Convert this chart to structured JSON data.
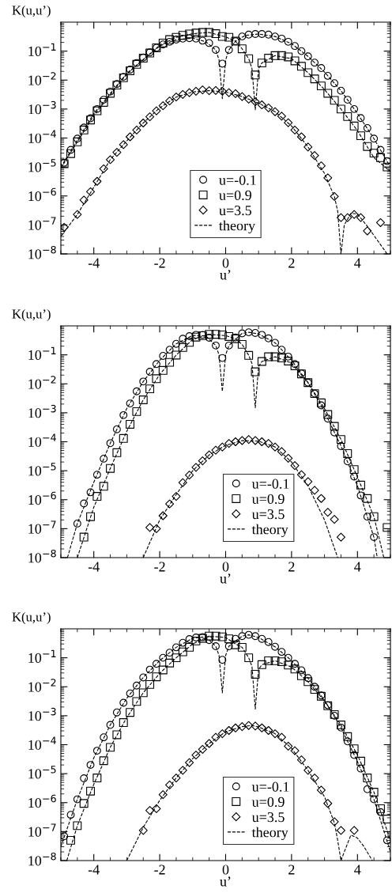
{
  "chart_data": [
    {
      "type": "scatter",
      "xlabel": "u’",
      "ylabel": "K(u,u’)",
      "log": "y",
      "legend": "bottom",
      "grid": false,
      "xlim": [
        -5,
        5
      ],
      "xticks": [
        -4,
        -2,
        0,
        2,
        4
      ],
      "ylim": [
        1e-08,
        1
      ],
      "yticks": [
        {
          "value": 1e-08,
          "label": "10$^{−8}$"
        },
        {
          "value": 1e-07,
          "label": "10$^{−7}$"
        },
        {
          "value": 1e-06,
          "label": "10$^{−6}$"
        },
        {
          "value": 1e-05,
          "label": "10$^{−5}$"
        },
        {
          "value": 0.0001,
          "label": "10$^{−4}$"
        },
        {
          "value": 0.001,
          "label": "10$^{−3}$"
        },
        {
          "value": 0.01,
          "label": "10$^{−2}$"
        },
        {
          "value": 0.1,
          "label": "10$^{−1}$"
        }
      ],
      "series": [
        {
          "type": "line",
          "name": "theory",
          "color": "#000000",
          "line_style": "dashed",
          "x": [
            -5,
            -4,
            -3,
            -2,
            -1.5,
            -1,
            -0.6,
            -0.3,
            -0.2,
            -0.1,
            0,
            0.1,
            0.3,
            0.6,
            1,
            1.5,
            2,
            2.5,
            3,
            3.5,
            4,
            4.5,
            5
          ],
          "values": [
            1e-05,
            0.0007,
            0.017,
            0.15,
            0.25,
            0.28,
            0.21,
            0.11,
            0.05,
            0.0023,
            0.05,
            0.11,
            0.22,
            0.35,
            0.39,
            0.32,
            0.18,
            0.066,
            0.019,
            0.0043,
            0.0007,
            9.5e-05,
            1e-05
          ]
        },
        {
          "type": "line",
          "color": "#000000",
          "line_style": "dashed",
          "x": [
            -5,
            -4,
            -3,
            -2,
            -1.5,
            -1,
            -0.5,
            0,
            0.3,
            0.5,
            0.7,
            0.8,
            0.9,
            1.0,
            1.1,
            1.5,
            2,
            2.5,
            3,
            3.5,
            4,
            4.5,
            5
          ],
          "values": [
            9e-06,
            0.0006,
            0.016,
            0.16,
            0.3,
            0.4,
            0.44,
            0.31,
            0.22,
            0.12,
            0.055,
            0.025,
            0.00095,
            0.025,
            0.039,
            0.07,
            0.055,
            0.018,
            0.0047,
            0.001,
            0.00018,
            2.1e-05,
            7e-06
          ]
        },
        {
          "type": "line",
          "color": "#000000",
          "line_style": "dashed",
          "x": [
            -5,
            -4.5,
            -4,
            -3.5,
            -3,
            -2.5,
            -2,
            -1.5,
            -1,
            -0.5,
            0,
            0.5,
            1,
            1.5,
            2,
            2.5,
            3,
            3.3,
            3.4,
            3.5,
            3.6,
            3.8,
            4.0,
            4.3,
            4.6,
            4.9
          ],
          "values": [
            4e-08,
            2.3e-07,
            2e-06,
            1.8e-05,
            8e-05,
            0.00033,
            0.0011,
            0.0026,
            0.0039,
            0.0043,
            0.0039,
            0.0027,
            0.0016,
            0.00081,
            0.00026,
            4.9e-05,
            6e-06,
            9.6e-07,
            3e-07,
            1e-08,
            1e-07,
            2.5e-07,
            2.4e-07,
            9e-08,
            3e-08,
            1e-08
          ]
        },
        {
          "type": "scatter",
          "name": "u=-0.1",
          "color": "#000000",
          "marker": "circle",
          "x": [
            -4.9,
            -4.7,
            -4.5,
            -4.3,
            -4.1,
            -3.9,
            -3.7,
            -3.5,
            -3.3,
            -3.1,
            -2.9,
            -2.7,
            -2.5,
            -2.3,
            -2.1,
            -1.9,
            -1.7,
            -1.5,
            -1.3,
            -1.1,
            -0.9,
            -0.7,
            -0.5,
            -0.3,
            -0.1,
            0.1,
            0.3,
            0.5,
            0.7,
            0.9,
            1.1,
            1.3,
            1.5,
            1.7,
            1.9,
            2.1,
            2.3,
            2.5,
            2.7,
            2.9,
            3.1,
            3.3,
            3.5,
            3.7,
            3.9,
            4.1,
            4.3,
            4.5,
            4.7,
            4.9
          ],
          "values": [
            1.4e-05,
            3.9e-05,
            9.5e-05,
            0.00023,
            0.00048,
            0.001,
            0.0021,
            0.004,
            0.0073,
            0.013,
            0.023,
            0.039,
            0.06,
            0.09,
            0.13,
            0.17,
            0.21,
            0.25,
            0.27,
            0.28,
            0.27,
            0.23,
            0.19,
            0.11,
            0.037,
            0.11,
            0.22,
            0.32,
            0.37,
            0.39,
            0.39,
            0.37,
            0.32,
            0.27,
            0.21,
            0.15,
            0.1,
            0.066,
            0.04,
            0.026,
            0.014,
            0.0078,
            0.0043,
            0.0021,
            0.001,
            0.00049,
            0.00022,
            9.5e-05,
            3.9e-05,
            1.6e-05
          ]
        },
        {
          "type": "scatter",
          "name": "u=0.9",
          "color": "#000000",
          "marker": "square",
          "x": [
            -4.9,
            -4.7,
            -4.5,
            -4.3,
            -4.1,
            -3.9,
            -3.7,
            -3.5,
            -3.3,
            -3.1,
            -2.9,
            -2.7,
            -2.5,
            -2.3,
            -2.1,
            -1.9,
            -1.7,
            -1.5,
            -1.3,
            -1.1,
            -0.9,
            -0.7,
            -0.5,
            -0.3,
            -0.1,
            0.1,
            0.3,
            0.5,
            0.7,
            0.9,
            1.1,
            1.3,
            1.5,
            1.7,
            1.9,
            2.1,
            2.3,
            2.5,
            2.7,
            2.9,
            3.1,
            3.3,
            3.5,
            3.7,
            3.9,
            4.1,
            4.3,
            4.5,
            4.7,
            4.9
          ],
          "values": [
            1.3e-05,
            2.9e-05,
            7.4e-05,
            0.00019,
            0.00042,
            0.00087,
            0.0017,
            0.0035,
            0.0067,
            0.012,
            0.021,
            0.035,
            0.057,
            0.086,
            0.13,
            0.19,
            0.25,
            0.3,
            0.35,
            0.39,
            0.42,
            0.44,
            0.44,
            0.4,
            0.32,
            0.3,
            0.22,
            0.12,
            0.055,
            0.015,
            0.039,
            0.057,
            0.07,
            0.07,
            0.063,
            0.046,
            0.03,
            0.018,
            0.011,
            0.0063,
            0.0035,
            0.002,
            0.001,
            0.00055,
            0.00026,
            0.00012,
            5.1e-05,
            3e-05,
            2.1e-05,
            1e-05
          ]
        },
        {
          "type": "scatter",
          "name": "u=3.5",
          "color": "#000000",
          "marker": "diamond",
          "x": [
            -4.9,
            -4.5,
            -4.3,
            -4.1,
            -3.9,
            -3.7,
            -3.5,
            -3.3,
            -3.1,
            -2.9,
            -2.7,
            -2.5,
            -2.3,
            -2.1,
            -1.9,
            -1.7,
            -1.5,
            -1.3,
            -1.1,
            -0.9,
            -0.7,
            -0.5,
            -0.3,
            -0.1,
            0.1,
            0.3,
            0.5,
            0.7,
            0.9,
            1.1,
            1.3,
            1.5,
            1.7,
            1.9,
            2.1,
            2.3,
            2.5,
            2.7,
            2.9,
            3.1,
            3.3,
            3.5,
            3.7,
            3.9,
            4.1,
            4.3,
            4.7
          ],
          "values": [
            8.3e-08,
            2.3e-07,
            7.2e-07,
            1.4e-06,
            3.2e-06,
            8.7e-06,
            1.8e-05,
            3.2e-05,
            5.9e-05,
            0.00011,
            0.00019,
            0.00033,
            0.00054,
            0.00087,
            0.0013,
            0.0019,
            0.0026,
            0.0032,
            0.0037,
            0.0041,
            0.0046,
            0.0043,
            0.0044,
            0.0041,
            0.0037,
            0.0034,
            0.0027,
            0.0022,
            0.0018,
            0.0014,
            0.0011,
            0.00081,
            0.00057,
            0.00034,
            0.00019,
            0.00011,
            4.9e-05,
            2.5e-05,
            1.1e-05,
            4.2e-06,
            9.6e-07,
            1.8e-07,
            1.8e-07,
            2.3e-07,
            1.8e-07,
            6.2e-08,
            1.2e-07
          ]
        }
      ]
    },
    {
      "type": "scatter",
      "xlabel": "u’",
      "ylabel": "K(u,u’)",
      "log": "y",
      "legend": "bottom right",
      "grid": false,
      "xlim": [
        -5,
        5
      ],
      "xticks": [
        -4,
        -2,
        0,
        2,
        4
      ],
      "ylim": [
        1e-08,
        1
      ],
      "yticks": [
        {
          "value": 1e-08,
          "label": "10$^{−8}$"
        },
        {
          "value": 1e-07,
          "label": "10$^{−7}$"
        },
        {
          "value": 1e-06,
          "label": "10$^{−6}$"
        },
        {
          "value": 1e-05,
          "label": "10$^{−5}$"
        },
        {
          "value": 0.0001,
          "label": "10$^{−4}$"
        },
        {
          "value": 0.001,
          "label": "10$^{−3}$"
        },
        {
          "value": 0.01,
          "label": "10$^{−2}$"
        },
        {
          "value": 0.1,
          "label": "10$^{−1}$"
        }
      ],
      "series": [
        {
          "type": "line",
          "name": "theory",
          "color": "#000000",
          "line_style": "dashed",
          "x": [
            -4.8,
            -4.5,
            -4,
            -3.5,
            -3,
            -2.5,
            -2,
            -1.5,
            -1,
            -0.6,
            -0.3,
            -0.2,
            -0.1,
            0,
            0.1,
            0.5,
            0.7,
            1,
            1.5,
            2,
            2.5,
            3,
            3.5,
            4,
            4.5,
            4.6
          ],
          "values": [
            1e-08,
            1.5e-07,
            4e-06,
            8.9e-05,
            0.0014,
            0.012,
            0.065,
            0.24,
            0.47,
            0.45,
            0.21,
            0.1,
            0.0055,
            0.1,
            0.21,
            0.55,
            0.6,
            0.53,
            0.26,
            0.065,
            0.011,
            0.0011,
            7.1e-05,
            3e-06,
            5e-08,
            1e-08
          ]
        },
        {
          "type": "line",
          "color": "#000000",
          "line_style": "dashed",
          "x": [
            -4.5,
            -4,
            -3.5,
            -3,
            -2.5,
            -2,
            -1.5,
            -1,
            -0.5,
            0,
            0.3,
            0.5,
            0.7,
            0.8,
            0.9,
            1.0,
            1.1,
            1.5,
            2,
            2.5,
            3,
            3.5,
            4,
            4.5,
            4.8
          ],
          "values": [
            1e-08,
            5.5e-07,
            1.2e-05,
            0.00023,
            0.0028,
            0.021,
            0.098,
            0.34,
            0.51,
            0.46,
            0.36,
            0.23,
            0.096,
            0.05,
            0.0015,
            0.04,
            0.059,
            0.086,
            0.052,
            0.011,
            0.0014,
            0.00012,
            6e-06,
            2.6e-07,
            1e-08
          ]
        },
        {
          "type": "line",
          "color": "#000000",
          "line_style": "dashed",
          "x": [
            -2.5,
            -2,
            -1.5,
            -1,
            -0.5,
            0,
            0.5,
            1,
            1.5,
            2,
            2.5,
            3,
            3.4
          ],
          "values": [
            1e-08,
            2e-07,
            1.5e-06,
            1e-05,
            3.5e-05,
            7.5e-05,
            0.00011,
            0.000105,
            6.6e-05,
            2e-05,
            3e-06,
            2e-07,
            1e-08
          ]
        },
        {
          "type": "scatter",
          "name": "u=-0.1",
          "color": "#000000",
          "marker": "circle",
          "x": [
            -4.5,
            -4.3,
            -4.1,
            -3.9,
            -3.7,
            -3.5,
            -3.3,
            -3.1,
            -2.9,
            -2.7,
            -2.5,
            -2.3,
            -2.1,
            -1.9,
            -1.7,
            -1.5,
            -1.3,
            -1.1,
            -0.9,
            -0.7,
            -0.5,
            -0.3,
            -0.1,
            0.1,
            0.3,
            0.5,
            0.7,
            0.9,
            1.1,
            1.3,
            1.5,
            1.7,
            1.9,
            2.1,
            2.3,
            2.5,
            2.7,
            2.9,
            3.1,
            3.3,
            3.5,
            3.7,
            3.9,
            4.1,
            4.3,
            4.5
          ],
          "values": [
            1.5e-07,
            7.4e-07,
            1.8e-06,
            7.3e-06,
            2.6e-05,
            8.9e-05,
            0.00027,
            0.00083,
            0.0021,
            0.0055,
            0.012,
            0.026,
            0.048,
            0.092,
            0.15,
            0.24,
            0.36,
            0.44,
            0.49,
            0.49,
            0.39,
            0.21,
            0.078,
            0.21,
            0.4,
            0.55,
            0.6,
            0.57,
            0.49,
            0.37,
            0.26,
            0.15,
            0.087,
            0.048,
            0.023,
            0.011,
            0.0046,
            0.0018,
            0.00063,
            0.00021,
            7.1e-05,
            2.1e-05,
            6.3e-06,
            1.4e-06,
            2.6e-07,
            5.1e-08
          ]
        },
        {
          "type": "scatter",
          "name": "u=0.9",
          "color": "#000000",
          "marker": "square",
          "x": [
            -4.3,
            -4.1,
            -3.9,
            -3.7,
            -3.5,
            -3.3,
            -3.1,
            -2.9,
            -2.7,
            -2.5,
            -2.3,
            -2.1,
            -1.9,
            -1.7,
            -1.5,
            -1.3,
            -1.1,
            -0.9,
            -0.7,
            -0.5,
            -0.3,
            -0.1,
            0.1,
            0.3,
            0.5,
            0.7,
            0.9,
            1.1,
            1.3,
            1.5,
            1.7,
            1.9,
            2.1,
            2.3,
            2.5,
            2.7,
            2.9,
            3.1,
            3.3,
            3.5,
            3.7,
            3.9,
            4.1,
            4.3,
            4.5,
            4.9
          ],
          "values": [
            5.1e-08,
            2.6e-07,
            1.3e-06,
            2.9e-06,
            1.2e-05,
            4.2e-05,
            0.00013,
            0.0004,
            0.0011,
            0.0028,
            0.0067,
            0.015,
            0.029,
            0.055,
            0.098,
            0.18,
            0.27,
            0.41,
            0.46,
            0.51,
            0.51,
            0.49,
            0.43,
            0.36,
            0.23,
            0.096,
            0.026,
            0.059,
            0.086,
            0.086,
            0.078,
            0.061,
            0.042,
            0.022,
            0.011,
            0.0046,
            0.0022,
            0.00087,
            0.00034,
            0.00012,
            3.9e-05,
            1.1e-05,
            3.2e-06,
            1.1e-06,
            2.6e-07,
            1.1e-07
          ]
        },
        {
          "type": "scatter",
          "name": "u=3.5",
          "color": "#000000",
          "marker": "diamond",
          "x": [
            -2.3,
            -2.1,
            -1.9,
            -1.7,
            -1.5,
            -1.3,
            -1.1,
            -0.9,
            -0.7,
            -0.5,
            -0.3,
            -0.1,
            0.1,
            0.3,
            0.5,
            0.7,
            0.9,
            1.1,
            1.3,
            1.5,
            1.7,
            1.9,
            2.1,
            2.3,
            2.5,
            2.7,
            2.9,
            3.1,
            3.3,
            3.5
          ],
          "values": [
            1.1e-07,
            1e-07,
            2.8e-07,
            7.1e-07,
            1.3e-06,
            3.9e-06,
            7.1e-06,
            1.3e-05,
            2.2e-05,
            3.5e-05,
            5.1e-05,
            6.6e-05,
            8.7e-05,
            0.0001,
            0.00011,
            0.00012,
            0.00011,
            0.0001,
            8.7e-05,
            6.6e-05,
            4.6e-05,
            2.7e-05,
            1.5e-05,
            7.3e-06,
            4.2e-06,
            2.1e-06,
            1.1e-06,
            3.7e-07,
            2.1e-07,
            5.1e-08
          ]
        }
      ]
    },
    {
      "type": "scatter",
      "xlabel": "u’",
      "ylabel": "K(u,u’)",
      "log": "y",
      "legend": "bottom right",
      "grid": false,
      "xlim": [
        -5,
        5
      ],
      "xticks": [
        -4,
        -2,
        0,
        2,
        4
      ],
      "ylim": [
        1e-08,
        1
      ],
      "yticks": [
        {
          "value": 1e-08,
          "label": "10$^{−8}$"
        },
        {
          "value": 1e-07,
          "label": "10$^{−7}$"
        },
        {
          "value": 1e-06,
          "label": "10$^{−6}$"
        },
        {
          "value": 1e-05,
          "label": "10$^{−5}$"
        },
        {
          "value": 0.0001,
          "label": "10$^{−4}$"
        },
        {
          "value": 0.001,
          "label": "10$^{−3}$"
        },
        {
          "value": 0.01,
          "label": "10$^{−2}$"
        },
        {
          "value": 0.1,
          "label": "10$^{−1}$"
        }
      ],
      "series": [
        {
          "type": "line",
          "name": "theory",
          "color": "#000000",
          "line_style": "dashed",
          "x": [
            -5,
            -4.5,
            -4,
            -3.5,
            -3,
            -2.5,
            -2,
            -1.5,
            -1,
            -0.7,
            -0.5,
            -0.3,
            -0.2,
            -0.1,
            0,
            0.1,
            0.5,
            0.7,
            1,
            1.5,
            2,
            2.5,
            3,
            3.5,
            4,
            4.5,
            5
          ],
          "values": [
            3e-08,
            1.3e-06,
            3.5e-05,
            0.00048,
            0.004,
            0.021,
            0.08,
            0.23,
            0.47,
            0.52,
            0.41,
            0.25,
            0.12,
            0.0062,
            0.12,
            0.25,
            0.56,
            0.62,
            0.5,
            0.24,
            0.08,
            0.02,
            0.0034,
            0.00039,
            2.6e-05,
            1.3e-06,
            2e-08
          ]
        },
        {
          "type": "line",
          "color": "#000000",
          "line_style": "dashed",
          "x": [
            -4.82,
            -4.5,
            -4,
            -3.5,
            -3,
            -2.5,
            -2,
            -1.5,
            -1,
            -0.5,
            0,
            0.3,
            0.5,
            0.7,
            0.8,
            0.9,
            1.0,
            1.1,
            1.5,
            2,
            2.5,
            3,
            3.5,
            4,
            4.5,
            5
          ],
          "values": [
            1e-08,
            1.6e-07,
            4.3e-06,
            8.1e-05,
            0.00087,
            0.0062,
            0.029,
            0.1,
            0.3,
            0.56,
            0.5,
            0.3,
            0.23,
            0.1,
            0.05,
            0.0017,
            0.04,
            0.058,
            0.079,
            0.048,
            0.015,
            0.0032,
            0.00048,
            4.4e-05,
            2.3e-06,
            5e-08
          ]
        },
        {
          "type": "line",
          "color": "#000000",
          "line_style": "dashed",
          "x": [
            -3,
            -2.5,
            -2,
            -1.5,
            -1,
            -0.5,
            0,
            0.5,
            0.8,
            1,
            1.5,
            2,
            2.5,
            3,
            3.3,
            3.4,
            3.5,
            3.6,
            3.8,
            4.0,
            4.2,
            4.45
          ],
          "values": [
            1e-08,
            1.4e-07,
            1.2e-06,
            7.1e-06,
            3.3e-05,
            0.00011,
            0.00028,
            0.00042,
            0.00046,
            0.00041,
            0.00024,
            7.5e-05,
            1.3e-05,
            1.6e-06,
            2e-07,
            5e-08,
            1e-08,
            2e-08,
            7.6e-08,
            6e-08,
            3e-08,
            1e-08
          ]
        },
        {
          "type": "scatter",
          "name": "u=-0.1",
          "color": "#000000",
          "marker": "circle",
          "x": [
            -4.9,
            -4.7,
            -4.5,
            -4.3,
            -4.1,
            -3.9,
            -3.7,
            -3.5,
            -3.3,
            -3.1,
            -2.9,
            -2.7,
            -2.5,
            -2.3,
            -2.1,
            -1.9,
            -1.7,
            -1.5,
            -1.3,
            -1.1,
            -0.9,
            -0.7,
            -0.5,
            -0.3,
            -0.1,
            0.1,
            0.3,
            0.5,
            0.7,
            0.9,
            1.1,
            1.3,
            1.5,
            1.7,
            1.9,
            2.1,
            2.3,
            2.5,
            2.7,
            2.9,
            3.1,
            3.3,
            3.5,
            3.7,
            3.9,
            4.1,
            4.3,
            4.5,
            4.7,
            4.9
          ],
          "values": [
            6.9e-08,
            3.8e-07,
            1.3e-06,
            6.9e-06,
            2e-05,
            6.2e-05,
            0.00018,
            0.00048,
            0.0013,
            0.0028,
            0.0059,
            0.011,
            0.021,
            0.039,
            0.062,
            0.1,
            0.15,
            0.23,
            0.33,
            0.44,
            0.5,
            0.52,
            0.41,
            0.25,
            0.085,
            0.25,
            0.45,
            0.56,
            0.62,
            0.56,
            0.45,
            0.35,
            0.24,
            0.16,
            0.1,
            0.062,
            0.037,
            0.02,
            0.01,
            0.005,
            0.0023,
            0.001,
            0.00039,
            0.00013,
            4.4e-05,
            1.5e-05,
            2.9e-06,
            1.3e-06,
            4.7e-07,
            5e-08
          ]
        },
        {
          "type": "scatter",
          "name": "u=0.9",
          "color": "#000000",
          "marker": "square",
          "x": [
            -4.7,
            -4.5,
            -4.3,
            -4.1,
            -3.9,
            -3.7,
            -3.5,
            -3.3,
            -3.1,
            -2.9,
            -2.7,
            -2.5,
            -2.3,
            -2.1,
            -1.9,
            -1.7,
            -1.5,
            -1.3,
            -1.1,
            -0.9,
            -0.7,
            -0.5,
            -0.3,
            -0.1,
            0.1,
            0.3,
            0.5,
            0.7,
            0.9,
            1.1,
            1.3,
            1.5,
            1.7,
            1.9,
            2.1,
            2.3,
            2.5,
            2.7,
            2.9,
            3.1,
            3.3,
            3.5,
            3.7,
            3.9,
            4.1,
            4.3,
            4.5,
            4.7,
            4.9
          ],
          "values": [
            5e-08,
            1.6e-07,
            9.4e-07,
            2.5e-06,
            7.1e-06,
            2.8e-05,
            8.1e-05,
            0.00022,
            0.00058,
            0.0013,
            0.0031,
            0.0062,
            0.012,
            0.022,
            0.038,
            0.066,
            0.1,
            0.16,
            0.23,
            0.38,
            0.47,
            0.56,
            0.56,
            0.53,
            0.45,
            0.28,
            0.23,
            0.1,
            0.027,
            0.058,
            0.079,
            0.079,
            0.073,
            0.056,
            0.041,
            0.024,
            0.015,
            0.0081,
            0.0047,
            0.0022,
            0.0011,
            0.00048,
            0.00019,
            7.2e-05,
            2.7e-05,
            7.1e-06,
            2.3e-06,
            6.2e-07,
            2.7e-07
          ]
        },
        {
          "type": "scatter",
          "name": "u=3.5",
          "color": "#000000",
          "marker": "diamond",
          "x": [
            -2.5,
            -2.3,
            -2.1,
            -1.9,
            -1.7,
            -1.5,
            -1.3,
            -1.1,
            -0.9,
            -0.7,
            -0.5,
            -0.3,
            -0.1,
            0.1,
            0.3,
            0.5,
            0.7,
            0.9,
            1.1,
            1.3,
            1.5,
            1.7,
            1.9,
            2.1,
            2.3,
            2.5,
            2.7,
            2.9,
            3.1,
            3.3,
            3.5,
            3.9
          ],
          "values": [
            1.1e-07,
            5.4e-07,
            6.2e-07,
            1.9e-06,
            4.1e-06,
            7.1e-06,
            1.3e-05,
            2.4e-05,
            4.4e-05,
            6.9e-05,
            0.00011,
            0.00018,
            0.00024,
            0.00031,
            0.00038,
            0.00042,
            0.00046,
            0.00044,
            0.00038,
            0.00031,
            0.00024,
            0.00018,
            8.9e-05,
            6.2e-05,
            3e-05,
            1.3e-05,
            7.1e-06,
            2.7e-06,
            9.4e-07,
            2.2e-07,
            1.1e-07,
            1.1e-07
          ]
        }
      ]
    }
  ]
}
